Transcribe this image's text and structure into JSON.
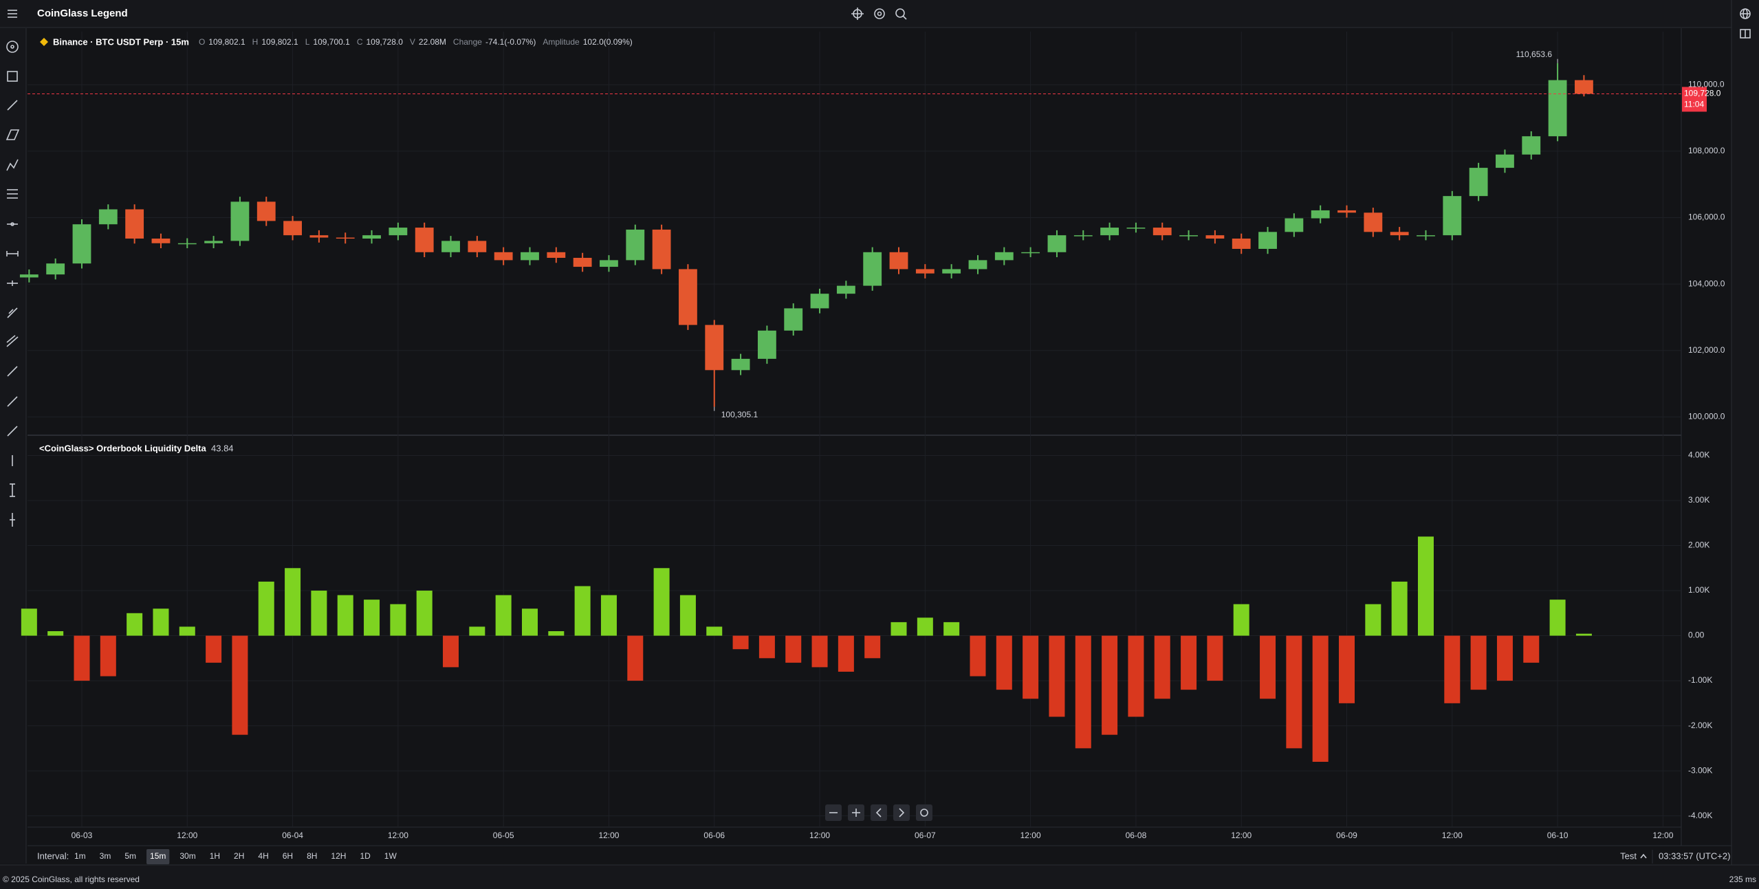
{
  "header": {
    "title": "CoinGlass Legend"
  },
  "legend": {
    "symbol": "Binance · BTC USDT Perp · 15m",
    "fields": [
      {
        "key": "O",
        "value": "109,802.1"
      },
      {
        "key": "H",
        "value": "109,802.1"
      },
      {
        "key": "L",
        "value": "109,700.1"
      },
      {
        "key": "C",
        "value": "109,728.0"
      },
      {
        "key": "V",
        "value": "22.08M"
      },
      {
        "key": "Change",
        "value": "-74.1(-0.07%)"
      },
      {
        "key": "Amplitude",
        "value": "102.0(0.09%)"
      }
    ]
  },
  "chart_data": [
    {
      "type": "candlestick",
      "x": [
        "06-02 18:00",
        "06-02 21:00",
        "06-03 00:00",
        "06-03 03:00",
        "06-03 06:00",
        "06-03 09:00",
        "06-03 12:00",
        "06-03 15:00",
        "06-03 18:00",
        "06-03 21:00",
        "06-04 00:00",
        "06-04 03:00",
        "06-04 06:00",
        "06-04 09:00",
        "06-04 12:00",
        "06-04 15:00",
        "06-04 18:00",
        "06-04 21:00",
        "06-05 00:00",
        "06-05 03:00",
        "06-05 06:00",
        "06-05 09:00",
        "06-05 12:00",
        "06-05 15:00",
        "06-05 18:00",
        "06-05 21:00",
        "06-06 00:00",
        "06-06 03:00",
        "06-06 06:00",
        "06-06 09:00",
        "06-06 12:00",
        "06-06 15:00",
        "06-06 18:00",
        "06-06 21:00",
        "06-07 00:00",
        "06-07 03:00",
        "06-07 06:00",
        "06-07 09:00",
        "06-07 12:00",
        "06-07 15:00",
        "06-07 18:00",
        "06-07 21:00",
        "06-08 00:00",
        "06-08 03:00",
        "06-08 06:00",
        "06-08 09:00",
        "06-08 12:00",
        "06-08 15:00",
        "06-08 18:00",
        "06-08 21:00",
        "06-09 00:00",
        "06-09 03:00",
        "06-09 06:00",
        "06-09 09:00",
        "06-09 12:00",
        "06-09 15:00",
        "06-09 18:00",
        "06-09 21:00",
        "06-10 00:00",
        "06-10 03:00"
      ],
      "open": [
        104200,
        104290,
        104620,
        105800,
        106250,
        105370,
        105230,
        105230,
        105300,
        106480,
        105900,
        105470,
        105400,
        105370,
        105470,
        105700,
        104960,
        105300,
        104960,
        104720,
        104960,
        104790,
        104520,
        104720,
        105640,
        104450,
        102770,
        101410,
        101750,
        102600,
        103270,
        103710,
        103950,
        104960,
        104450,
        104320,
        104450,
        104720,
        104960,
        104960,
        105470,
        105470,
        105700,
        105700,
        105470,
        105470,
        105370,
        105060,
        105570,
        105980,
        106220,
        106150,
        105570,
        105470,
        105470,
        106650,
        107500,
        107900,
        108450,
        110140
      ],
      "high": [
        104440,
        104770,
        105950,
        106400,
        106400,
        105520,
        105380,
        105450,
        106630,
        106630,
        106050,
        105620,
        105550,
        105620,
        105850,
        105850,
        105450,
        105450,
        105110,
        105110,
        105110,
        104940,
        104870,
        105790,
        105790,
        104600,
        102920,
        101900,
        102750,
        103420,
        103860,
        104100,
        105110,
        105110,
        104600,
        104600,
        104870,
        105110,
        105110,
        105620,
        105620,
        105850,
        105850,
        105850,
        105620,
        105620,
        105520,
        105720,
        106130,
        106370,
        106370,
        106300,
        105720,
        105620,
        106800,
        107650,
        108050,
        108600,
        110653.6,
        110290
      ],
      "low": [
        104050,
        104140,
        104470,
        105650,
        105220,
        105080,
        105080,
        105080,
        105150,
        105750,
        105320,
        105250,
        105220,
        105220,
        105320,
        104810,
        104810,
        104810,
        104570,
        104570,
        104640,
        104370,
        104370,
        104570,
        104300,
        102620,
        100305.1,
        101260,
        101600,
        102450,
        103120,
        103560,
        103800,
        104300,
        104170,
        104170,
        104300,
        104570,
        104810,
        104810,
        105320,
        105320,
        105550,
        105320,
        105320,
        105220,
        104910,
        104910,
        105420,
        105830,
        106000,
        105420,
        105320,
        105320,
        105320,
        106500,
        107350,
        107750,
        108300,
        109650
      ],
      "close": [
        104290,
        104620,
        105800,
        106250,
        105370,
        105230,
        105230,
        105300,
        106480,
        105900,
        105470,
        105400,
        105370,
        105470,
        105700,
        104960,
        105300,
        104960,
        104720,
        104960,
        104790,
        104520,
        104720,
        105640,
        104450,
        102770,
        101410,
        101750,
        102600,
        103270,
        103710,
        103950,
        104960,
        104450,
        104320,
        104450,
        104720,
        104960,
        104960,
        105470,
        105470,
        105700,
        105700,
        105470,
        105470,
        105370,
        105060,
        105570,
        105980,
        106220,
        106150,
        105570,
        105470,
        105470,
        106650,
        107500,
        107900,
        108450,
        110140,
        109728
      ],
      "up_color": "#5cb85c",
      "down_color": "#e4572e",
      "ylim": [
        99450,
        111600
      ],
      "yticks": [
        {
          "value": 100000,
          "label": "100,000.0"
        },
        {
          "value": 102000,
          "label": "102,000.0"
        },
        {
          "value": 104000,
          "label": "104,000.0"
        },
        {
          "value": 106000,
          "label": "106,000.0"
        },
        {
          "value": 108000,
          "label": "108,000.0"
        },
        {
          "value": 110000,
          "label": "110,000.0"
        }
      ],
      "annotations": [
        {
          "x": "06-10 00:00",
          "value": 110653.6,
          "label": "110,653.6"
        },
        {
          "x": "06-06 00:00",
          "value": 100305.1,
          "label": "100,305.1"
        }
      ],
      "last_price": {
        "value": 109728,
        "label": "109,728.0",
        "countdown": "11:04",
        "color": "#f23645"
      },
      "grid": true
    },
    {
      "type": "bar",
      "title": "<CoinGlass> Orderbook Liquidity Delta",
      "x": [
        "06-02 18:00",
        "06-02 21:00",
        "06-03 00:00",
        "06-03 03:00",
        "06-03 06:00",
        "06-03 09:00",
        "06-03 12:00",
        "06-03 15:00",
        "06-03 18:00",
        "06-03 21:00",
        "06-04 00:00",
        "06-04 03:00",
        "06-04 06:00",
        "06-04 09:00",
        "06-04 12:00",
        "06-04 15:00",
        "06-04 18:00",
        "06-04 21:00",
        "06-05 00:00",
        "06-05 03:00",
        "06-05 06:00",
        "06-05 09:00",
        "06-05 12:00",
        "06-05 15:00",
        "06-05 18:00",
        "06-05 21:00",
        "06-06 00:00",
        "06-06 03:00",
        "06-06 06:00",
        "06-06 09:00",
        "06-06 12:00",
        "06-06 15:00",
        "06-06 18:00",
        "06-06 21:00",
        "06-07 00:00",
        "06-07 03:00",
        "06-07 06:00",
        "06-07 09:00",
        "06-07 12:00",
        "06-07 15:00",
        "06-07 18:00",
        "06-07 21:00",
        "06-08 00:00",
        "06-08 03:00",
        "06-08 06:00",
        "06-08 09:00",
        "06-08 12:00",
        "06-08 15:00",
        "06-08 18:00",
        "06-08 21:00",
        "06-09 00:00",
        "06-09 03:00",
        "06-09 06:00",
        "06-09 09:00",
        "06-09 12:00",
        "06-09 15:00",
        "06-09 18:00",
        "06-09 21:00",
        "06-10 00:00",
        "06-10 03:00"
      ],
      "values": [
        600,
        100,
        -1000,
        -900,
        500,
        600,
        200,
        -600,
        -2200,
        1200,
        1500,
        1000,
        900,
        800,
        700,
        1000,
        -700,
        200,
        900,
        600,
        100,
        1100,
        900,
        -1000,
        1500,
        900,
        200,
        -300,
        -500,
        -600,
        -700,
        -800,
        -500,
        300,
        400,
        300,
        -900,
        -1200,
        -1400,
        -1800,
        -2500,
        -2200,
        -1800,
        -1400,
        -1200,
        -1000,
        700,
        -1400,
        -2500,
        -2800,
        -1500,
        700,
        1200,
        2200,
        -1500,
        -1200,
        -1000,
        -600,
        800,
        43.84
      ],
      "up_color": "#7ed321",
      "down_color": "#d9381e",
      "ylim": [
        -4250,
        4450
      ],
      "yticks": [
        {
          "value": -4000,
          "label": "-4.00K"
        },
        {
          "value": -3000,
          "label": "-3.00K"
        },
        {
          "value": -2000,
          "label": "-2.00K"
        },
        {
          "value": -1000,
          "label": "-1.00K"
        },
        {
          "value": 0,
          "label": "0.00"
        },
        {
          "value": 1000,
          "label": "1.00K"
        },
        {
          "value": 2000,
          "label": "2.00K"
        },
        {
          "value": 3000,
          "label": "3.00K"
        },
        {
          "value": 4000,
          "label": "4.00K"
        }
      ],
      "xlim": [
        "06-02 17:49",
        "06-10 14:05"
      ],
      "xticks": [
        {
          "value": "06-03 00:00",
          "label": "06-03"
        },
        {
          "value": "06-03 12:00",
          "label": "12:00"
        },
        {
          "value": "06-04 00:00",
          "label": "06-04"
        },
        {
          "value": "06-04 12:00",
          "label": "12:00"
        },
        {
          "value": "06-05 00:00",
          "label": "06-05"
        },
        {
          "value": "06-05 12:00",
          "label": "12:00"
        },
        {
          "value": "06-06 00:00",
          "label": "06-06"
        },
        {
          "value": "06-06 12:00",
          "label": "12:00"
        },
        {
          "value": "06-07 00:00",
          "label": "06-07"
        },
        {
          "value": "06-07 12:00",
          "label": "12:00"
        },
        {
          "value": "06-08 00:00",
          "label": "06-08"
        },
        {
          "value": "06-08 12:00",
          "label": "12:00"
        },
        {
          "value": "06-09 00:00",
          "label": "06-09"
        },
        {
          "value": "06-09 12:00",
          "label": "12:00"
        },
        {
          "value": "06-10 00:00",
          "label": "06-10"
        },
        {
          "value": "06-10 12:00",
          "label": "12:00"
        }
      ],
      "grid": true
    }
  ],
  "interval_bar": {
    "label": "Interval:",
    "options": [
      "1m",
      "3m",
      "5m",
      "15m",
      "30m",
      "1H",
      "2H",
      "4H",
      "6H",
      "8H",
      "12H",
      "1D",
      "1W"
    ],
    "active": 3,
    "profile": "Test",
    "clock": "03:33:57 (UTC+2)"
  },
  "footer": {
    "copyright": "© 2025 CoinGlass, all rights reserved",
    "latency": "235 ms"
  }
}
